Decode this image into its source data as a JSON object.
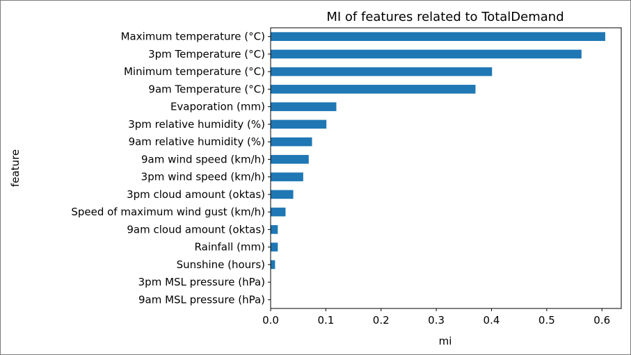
{
  "chart_data": {
    "type": "bar",
    "orientation": "horizontal",
    "title": "MI of features related to TotalDemand",
    "xlabel": "mi",
    "ylabel": "feature",
    "xlim": [
      0,
      0.635
    ],
    "xticks": [
      "0.0",
      "0.1",
      "0.2",
      "0.3",
      "0.4",
      "0.5",
      "0.6"
    ],
    "grid": false,
    "color": "#1f77b4",
    "categories": [
      "Maximum temperature (°C)",
      "3pm Temperature (°C)",
      "Minimum temperature (°C)",
      "9am Temperature (°C)",
      "Evaporation (mm)",
      "3pm relative humidity (%)",
      "9am relative humidity (%)",
      "9am wind speed (km/h)",
      "3pm wind speed (km/h)",
      "3pm cloud amount (oktas)",
      "Speed of maximum wind gust (km/h)",
      "9am cloud amount (oktas)",
      "Rainfall (mm)",
      "Sunshine (hours)",
      "3pm MSL pressure (hPa)",
      "9am MSL pressure (hPa)"
    ],
    "values": [
      0.606,
      0.563,
      0.401,
      0.371,
      0.119,
      0.101,
      0.075,
      0.069,
      0.059,
      0.041,
      0.027,
      0.013,
      0.013,
      0.008,
      0.0,
      0.0
    ]
  }
}
